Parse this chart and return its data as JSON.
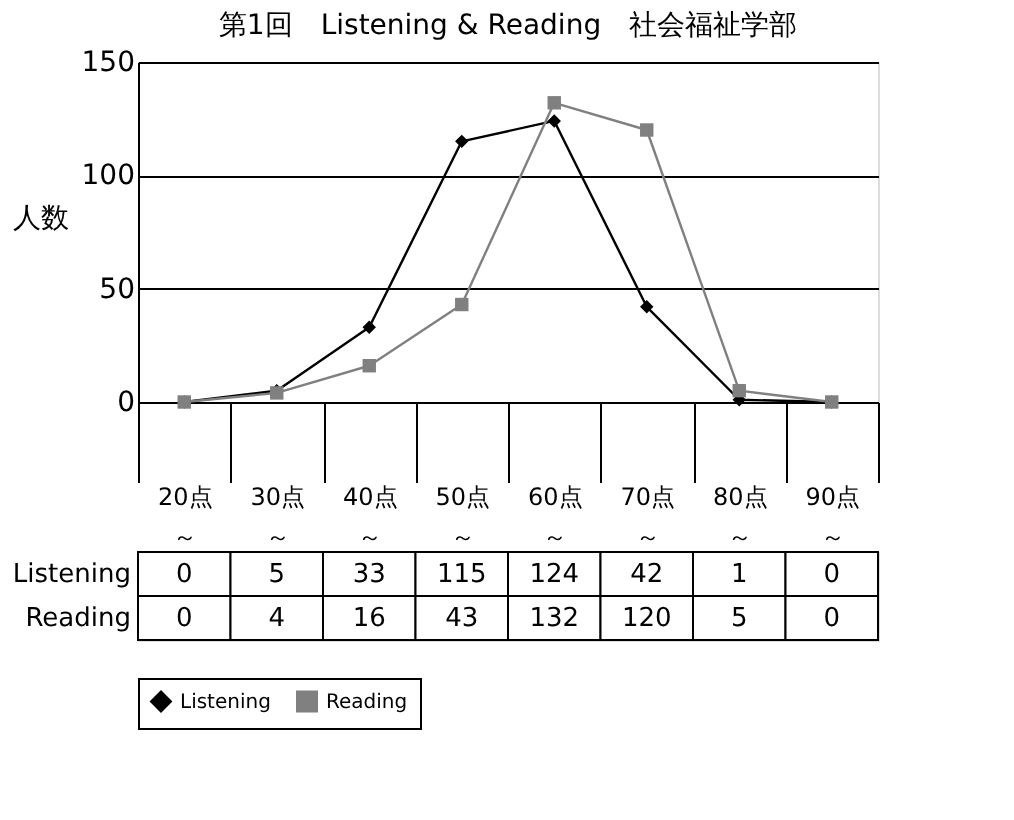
{
  "chart_data": {
    "type": "line",
    "title": "第1回　Listening & Reading　社会福祉学部",
    "ylabel": "人数",
    "categories": [
      "20点～",
      "30点～",
      "40点～",
      "50点～",
      "60点～",
      "70点～",
      "80点～",
      "90点～"
    ],
    "series": [
      {
        "name": "Listening",
        "color": "#000000",
        "marker": "diamond",
        "values": [
          0,
          5,
          33,
          115,
          124,
          42,
          1,
          0
        ]
      },
      {
        "name": "Reading",
        "color": "#808080",
        "marker": "square",
        "values": [
          0,
          4,
          16,
          43,
          132,
          120,
          5,
          0
        ]
      }
    ],
    "ylim": [
      0,
      150
    ],
    "yticks": [
      0,
      50,
      100,
      150
    ],
    "grid": "y",
    "legend": "bottom",
    "data_labels": true
  }
}
